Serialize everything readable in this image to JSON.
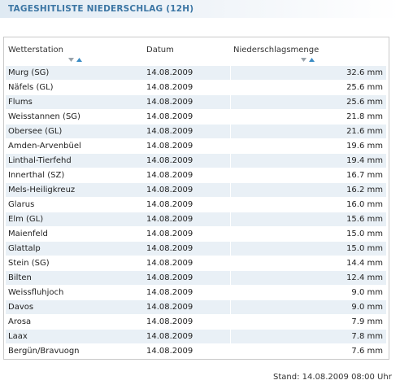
{
  "header": {
    "title": "TAGESHITLISTE NIEDERSCHLAG (12H)"
  },
  "table": {
    "columns": [
      "Wetterstation",
      "Datum",
      "Niederschlagsmenge"
    ],
    "rows": [
      [
        "Murg (SG)",
        "14.08.2009",
        "32.6 mm"
      ],
      [
        "Näfels (GL)",
        "14.08.2009",
        "25.6 mm"
      ],
      [
        "Flums",
        "14.08.2009",
        "25.6 mm"
      ],
      [
        "Weisstannen (SG)",
        "14.08.2009",
        "21.8 mm"
      ],
      [
        "Obersee (GL)",
        "14.08.2009",
        "21.6 mm"
      ],
      [
        "Amden-Arvenbüel",
        "14.08.2009",
        "19.6 mm"
      ],
      [
        "Linthal-Tierfehd",
        "14.08.2009",
        "19.4 mm"
      ],
      [
        "Innerthal (SZ)",
        "14.08.2009",
        "16.7 mm"
      ],
      [
        "Mels-Heiligkreuz",
        "14.08.2009",
        "16.2 mm"
      ],
      [
        "Glarus",
        "14.08.2009",
        "16.0 mm"
      ],
      [
        "Elm (GL)",
        "14.08.2009",
        "15.6 mm"
      ],
      [
        "Maienfeld",
        "14.08.2009",
        "15.0 mm"
      ],
      [
        "Glattalp",
        "14.08.2009",
        "15.0 mm"
      ],
      [
        "Stein (SG)",
        "14.08.2009",
        "14.4 mm"
      ],
      [
        "Bilten",
        "14.08.2009",
        "12.4 mm"
      ],
      [
        "Weissfluhjoch",
        "14.08.2009",
        "9.0 mm"
      ],
      [
        "Davos",
        "14.08.2009",
        "9.0 mm"
      ],
      [
        "Arosa",
        "14.08.2009",
        "7.9 mm"
      ],
      [
        "Laax",
        "14.08.2009",
        "7.8 mm"
      ],
      [
        "Bergün/Bravuogn",
        "14.08.2009",
        "7.6 mm"
      ]
    ]
  },
  "sort_icons": [
    {
      "column": "Wetterstation",
      "icon": "sort-arrows-icon",
      "active": "up"
    },
    {
      "column": "Niederschlagsmenge",
      "icon": "sort-arrows-icon",
      "active": "up"
    }
  ],
  "colors": {
    "title": "#3c76a4",
    "row_alt": "#e9f0f6",
    "arrow_active": "#3c8dc5",
    "arrow_inactive": "#9aa3ab"
  },
  "footer": {
    "status": "Stand: 14.08.2009 08:00 Uhr"
  }
}
